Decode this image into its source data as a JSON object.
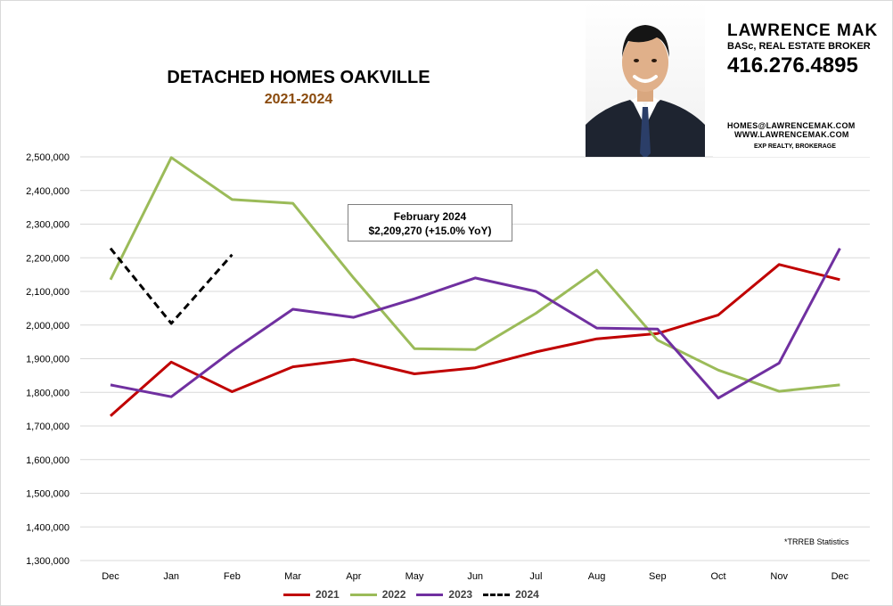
{
  "header": {
    "title": "DETACHED HOMES OAKVILLE",
    "subtitle": "2021-2024"
  },
  "agent": {
    "name": "LAWRENCE MAK",
    "title": "BASc, REAL ESTATE BROKER",
    "phone": "416.276.4895",
    "email": "HOMES@LAWRENCEMAK.COM",
    "website": "WWW.LAWRENCEMAK.COM",
    "brokerage": "EXP REALTY, BROKERAGE"
  },
  "callout": {
    "line1": "February 2024",
    "line2": "$2,209,270  (+15.0%  YoY)"
  },
  "source_note": "*TRREB Statistics",
  "chart_data": {
    "type": "line",
    "title": "DETACHED HOMES OAKVILLE",
    "subtitle": "2021-2024",
    "x": [
      "Dec",
      "Jan",
      "Feb",
      "Mar",
      "Apr",
      "May",
      "Jun",
      "Jul",
      "Aug",
      "Sep",
      "Oct",
      "Nov",
      "Dec"
    ],
    "y_ticks": [
      "1,300,000",
      "1,400,000",
      "1,500,000",
      "1,600,000",
      "1,700,000",
      "1,800,000",
      "1,900,000",
      "2,000,000",
      "2,100,000",
      "2,200,000",
      "2,300,000",
      "2,400,000",
      "2,500,000"
    ],
    "ylim": [
      1300000,
      2500000
    ],
    "grid": true,
    "legend_position": "bottom",
    "series": [
      {
        "name": "2021",
        "color": "#c00000",
        "dashed": false,
        "values": [
          1730000,
          1890000,
          1802000,
          1876000,
          1898000,
          1855000,
          1873000,
          1920000,
          1959000,
          1975000,
          2030000,
          2180000,
          2135000
        ]
      },
      {
        "name": "2022",
        "color": "#9bbb59",
        "dashed": false,
        "values": [
          2135000,
          2498000,
          2373000,
          2362000,
          2140000,
          1930000,
          1927000,
          2035000,
          2163000,
          1955000,
          1866000,
          1803000,
          1822000
        ]
      },
      {
        "name": "2023",
        "color": "#7030a0",
        "dashed": false,
        "values": [
          1822000,
          1787000,
          1923000,
          2047000,
          2023000,
          2078000,
          2140000,
          2100000,
          1991000,
          1988000,
          1783000,
          1887000,
          2228000
        ]
      },
      {
        "name": "2024",
        "color": "#000000",
        "dashed": true,
        "values": [
          2228000,
          2005000,
          2209270,
          null,
          null,
          null,
          null,
          null,
          null,
          null,
          null,
          null,
          null
        ]
      }
    ]
  }
}
